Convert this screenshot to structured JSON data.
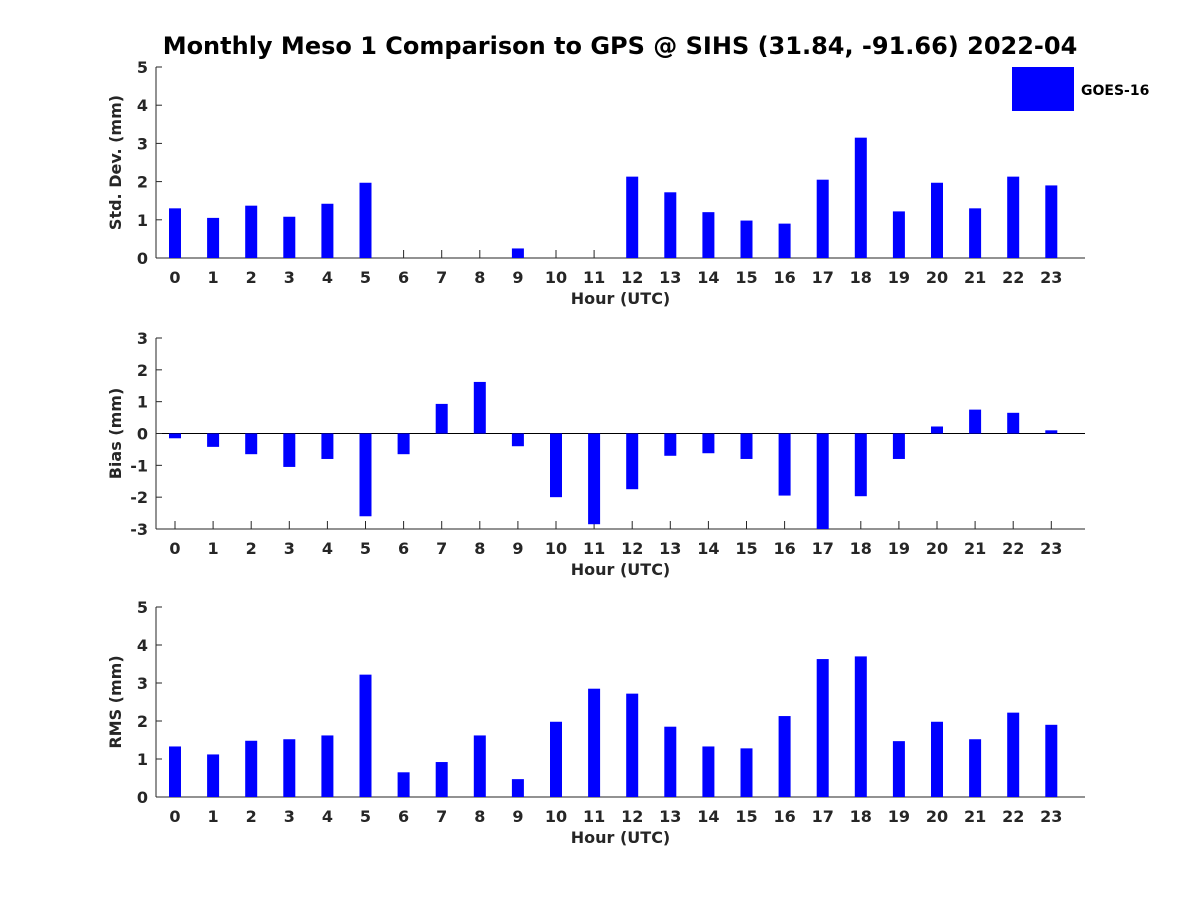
{
  "title": "Monthly Meso 1 Comparison to GPS @ SIHS (31.84, -91.66) 2022-04",
  "legend": {
    "label": "GOES-16",
    "color": "#0000ff"
  },
  "bar_color": "#0000ff",
  "chart_data": [
    {
      "type": "bar",
      "xlabel": "Hour (UTC)",
      "ylabel": "Std. Dev. (mm)",
      "categories": [
        "0",
        "1",
        "2",
        "3",
        "4",
        "5",
        "6",
        "7",
        "8",
        "9",
        "10",
        "11",
        "12",
        "13",
        "14",
        "15",
        "16",
        "17",
        "18",
        "19",
        "20",
        "21",
        "22",
        "23"
      ],
      "values": [
        1.3,
        1.05,
        1.37,
        1.08,
        1.42,
        1.97,
        0,
        0,
        0,
        0.25,
        0,
        0,
        2.13,
        1.72,
        1.2,
        0.98,
        0.9,
        2.05,
        3.15,
        1.22,
        1.97,
        1.3,
        2.13,
        1.9
      ],
      "ylim": [
        0,
        5
      ],
      "yticks": [
        0,
        1,
        2,
        3,
        4,
        5
      ],
      "legend": "top-right"
    },
    {
      "type": "bar",
      "xlabel": "Hour (UTC)",
      "ylabel": "Bias (mm)",
      "categories": [
        "0",
        "1",
        "2",
        "3",
        "4",
        "5",
        "6",
        "7",
        "8",
        "9",
        "10",
        "11",
        "12",
        "13",
        "14",
        "15",
        "16",
        "17",
        "18",
        "19",
        "20",
        "21",
        "22",
        "23"
      ],
      "values": [
        -0.15,
        -0.42,
        -0.65,
        -1.05,
        -0.8,
        -2.6,
        -0.65,
        0.93,
        1.62,
        -0.4,
        -2.0,
        -2.85,
        -1.75,
        -0.7,
        -0.62,
        -0.8,
        -1.95,
        -3.0,
        -1.97,
        -0.8,
        0.22,
        0.75,
        0.65,
        0.1
      ],
      "ylim": [
        -3,
        3
      ],
      "yticks": [
        -3,
        -2,
        -1,
        0,
        1,
        2,
        3
      ]
    },
    {
      "type": "bar",
      "xlabel": "Hour (UTC)",
      "ylabel": "RMS (mm)",
      "categories": [
        "0",
        "1",
        "2",
        "3",
        "4",
        "5",
        "6",
        "7",
        "8",
        "9",
        "10",
        "11",
        "12",
        "13",
        "14",
        "15",
        "16",
        "17",
        "18",
        "19",
        "20",
        "21",
        "22",
        "23"
      ],
      "values": [
        1.33,
        1.12,
        1.48,
        1.52,
        1.62,
        3.22,
        0.65,
        0.92,
        1.62,
        0.47,
        1.98,
        2.85,
        2.72,
        1.85,
        1.33,
        1.28,
        2.13,
        3.63,
        3.7,
        1.47,
        1.98,
        1.52,
        2.22,
        1.9
      ],
      "ylim": [
        0,
        5
      ],
      "yticks": [
        0,
        1,
        2,
        3,
        4,
        5
      ]
    }
  ]
}
